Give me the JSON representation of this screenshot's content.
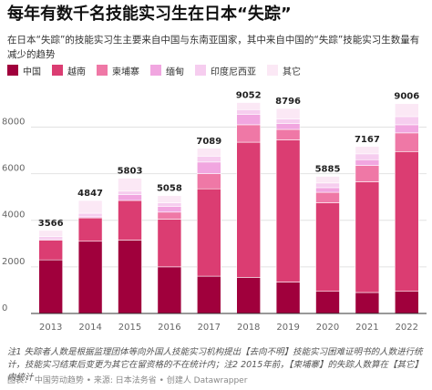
{
  "title": "每年有数千名技能实习生在日本“失踪”",
  "subtitle": "在日本“失踪”的技能实习生主要来自中国与东南亚国家，其中来自中国的“失踪”技能实习生数量有减少的趋势",
  "note": "注1 失踪者人数是根据监理团体等向外国人技能实习机构提出【去向不明】技能实习困难证明书的人数进行统计，技能实习结束后变更为其它在留资格的不在统计内；注2 2015年前，【柬埔寨】的失踪人数算在【其它】内统计",
  "source": "图表： 中国劳动趋势 • 来源: 日本法务省 • 创建人 Datawrapper",
  "colors": {
    "中国": "#a0003c",
    "越南": "#db3d72",
    "柬埔寨": "#ef78a6",
    "缅甸": "#f1a6e0",
    "印度尼西亚": "#f6cdef",
    "其它": "#fbe8f5"
  },
  "chart_data": {
    "type": "bar",
    "stacked": true,
    "categories": [
      "2013",
      "2014",
      "2015",
      "2016",
      "2017",
      "2018",
      "2019",
      "2020",
      "2021",
      "2022"
    ],
    "series": [
      {
        "name": "中国",
        "values": [
          2300,
          3100,
          3150,
          2000,
          1600,
          1550,
          1350,
          950,
          900,
          950
        ]
      },
      {
        "name": "越南",
        "values": [
          850,
          1000,
          1700,
          2050,
          3750,
          5800,
          6100,
          3800,
          4750,
          6000
        ]
      },
      {
        "name": "柬埔寨",
        "values": [
          0,
          0,
          0,
          300,
          650,
          750,
          450,
          450,
          700,
          800
        ]
      },
      {
        "name": "缅甸",
        "values": [
          50,
          50,
          250,
          250,
          500,
          450,
          250,
          200,
          250,
          350
        ]
      },
      {
        "name": "印度尼西亚",
        "values": [
          100,
          150,
          150,
          150,
          250,
          200,
          200,
          200,
          250,
          350
        ]
      },
      {
        "name": "其它",
        "values": [
          266,
          547,
          553,
          308,
          339,
          302,
          446,
          285,
          317,
          556
        ]
      }
    ],
    "totals": [
      3566,
      4847,
      5803,
      5058,
      7089,
      9052,
      8796,
      5885,
      7167,
      9006
    ],
    "y_ticks": [
      0,
      2000,
      4000,
      6000,
      8000
    ],
    "ylim": [
      0,
      9700
    ],
    "grid": true,
    "legend_position": "top-left"
  }
}
